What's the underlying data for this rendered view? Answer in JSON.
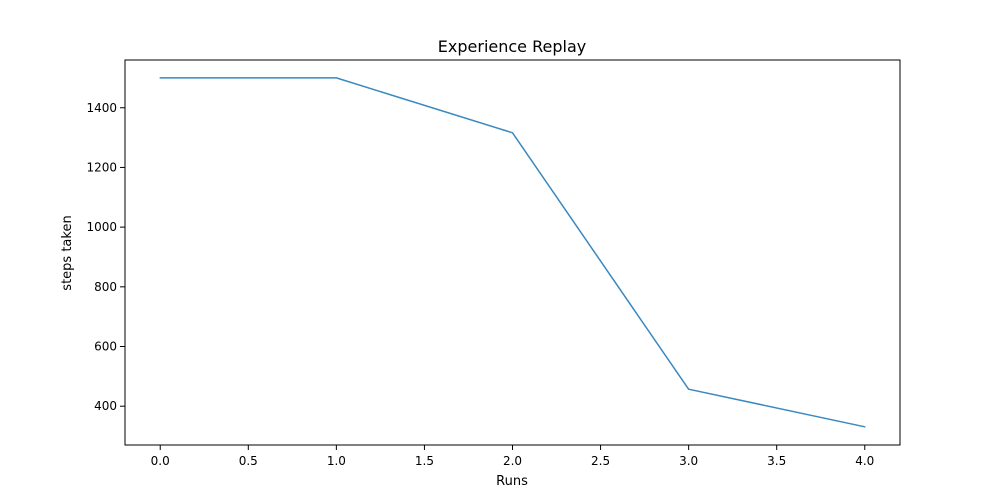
{
  "chart_data": {
    "type": "line",
    "title": "Experience Replay",
    "xlabel": "Runs",
    "ylabel": "steps taken",
    "xlim": [
      -0.2,
      4.2
    ],
    "ylim": [
      270,
      1560
    ],
    "xticks": [
      0.0,
      0.5,
      1.0,
      1.5,
      2.0,
      2.5,
      3.0,
      3.5,
      4.0
    ],
    "xtick_labels": [
      "0.0",
      "0.5",
      "1.0",
      "1.5",
      "2.0",
      "2.5",
      "3.0",
      "3.5",
      "4.0"
    ],
    "yticks": [
      400,
      600,
      800,
      1000,
      1200,
      1400
    ],
    "ytick_labels": [
      "400",
      "600",
      "800",
      "1000",
      "1200",
      "1400"
    ],
    "grid": false,
    "series": [
      {
        "color": "#3a88c0",
        "x": [
          0,
          1,
          2,
          3,
          4
        ],
        "values": [
          1500,
          1500,
          1316,
          457,
          331
        ]
      }
    ]
  }
}
